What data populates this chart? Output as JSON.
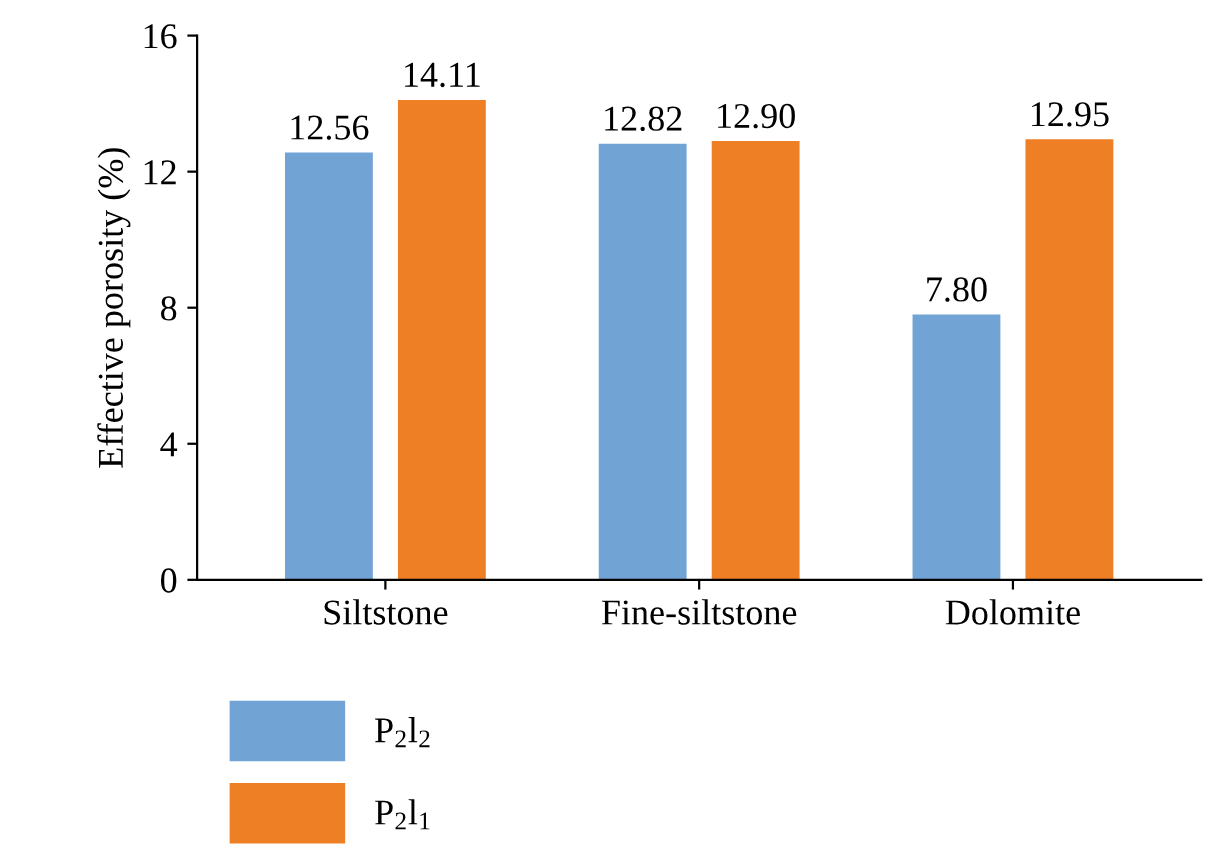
{
  "chart_data": {
    "type": "bar",
    "ylabel": "Effective porosity (%)",
    "categories": [
      "Siltstone",
      "Fine-siltstone",
      "Dolomite"
    ],
    "series": [
      {
        "name": "P$_{2}$l$_{2}$",
        "color": "#72a3d5",
        "values": [
          12.56,
          12.82,
          7.8
        ],
        "value_labels": [
          "12.56",
          "12.82",
          "7.80"
        ]
      },
      {
        "name": "P$_{2}$l$_{1}$",
        "color": "#ef7f24",
        "values": [
          14.11,
          12.9,
          12.95
        ],
        "value_labels": [
          "14.11",
          "12.90",
          "12.95"
        ]
      }
    ],
    "ylim": [
      0,
      16
    ],
    "yticks": [
      0,
      4,
      8,
      12,
      16
    ],
    "legend": "bottom left",
    "grid": false
  }
}
